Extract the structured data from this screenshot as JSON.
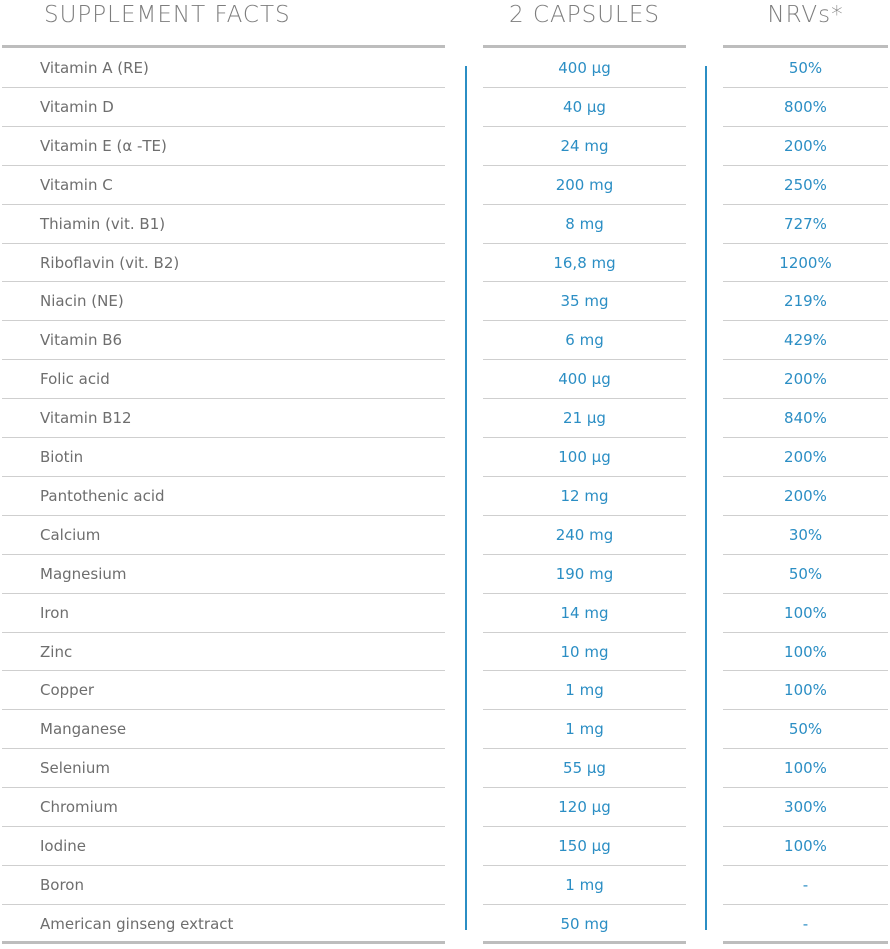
{
  "table": {
    "header": [
      "SUPPLEMENT FACTS",
      "2 CAPSULES",
      "NRVs*"
    ],
    "rows": [
      [
        "Vitamin A (RE)",
        "400 µg",
        "50%"
      ],
      [
        "Vitamin D",
        "40 µg",
        "800%"
      ],
      [
        "Vitamin E (α -TE)",
        "24 mg",
        "200%"
      ],
      [
        "Vitamin C",
        "200 mg",
        "250%"
      ],
      [
        "Thiamin (vit. B1)",
        "8 mg",
        "727%"
      ],
      [
        "Riboflavin (vit. B2)",
        "16,8 mg",
        "1200%"
      ],
      [
        "Niacin (NE)",
        "35 mg",
        "219%"
      ],
      [
        "Vitamin B6",
        "6 mg",
        "429%"
      ],
      [
        "Folic acid",
        "400 µg",
        "200%"
      ],
      [
        "Vitamin B12",
        "21 µg",
        "840%"
      ],
      [
        "Biotin",
        "100 µg",
        "200%"
      ],
      [
        "Pantothenic acid",
        "12 mg",
        "200%"
      ],
      [
        "Calcium",
        "240 mg",
        "30%"
      ],
      [
        "Magnesium",
        "190 mg",
        "50%"
      ],
      [
        "Iron",
        "14 mg",
        "100%"
      ],
      [
        "Zinc",
        "10 mg",
        "100%"
      ],
      [
        "Copper",
        "1 mg",
        "100%"
      ],
      [
        "Manganese",
        "1 mg",
        "50%"
      ],
      [
        "Selenium",
        "55 µg",
        "100%"
      ],
      [
        "Chromium",
        "120 µg",
        "300%"
      ],
      [
        "Iodine",
        "150 µg",
        "100%"
      ],
      [
        "Boron",
        "1 mg",
        "-"
      ],
      [
        "American ginseng extract",
        "50 mg",
        "-"
      ]
    ]
  }
}
